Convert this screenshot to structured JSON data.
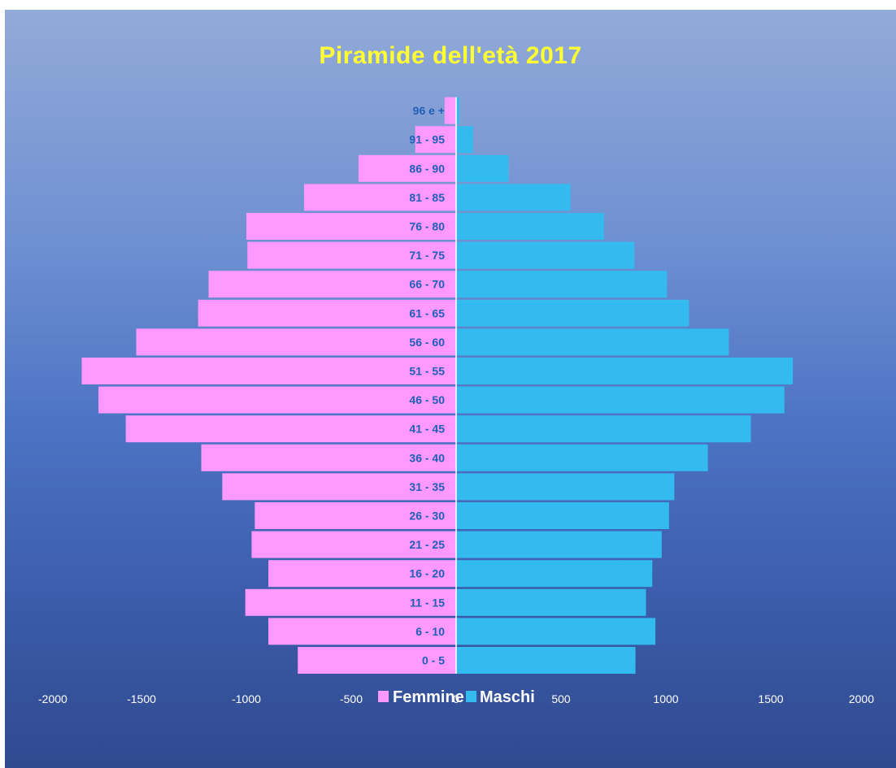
{
  "chart_data": {
    "type": "bar",
    "orientation": "horizontal",
    "title": "Piramide dell'età 2017",
    "categories": [
      "0 - 5",
      "6 - 10",
      "11 - 15",
      "16 - 20",
      "21 - 25",
      "26 - 30",
      "31 - 35",
      "36 - 40",
      "41 - 45",
      "46 - 50",
      "51 - 55",
      "56 - 60",
      "61 - 65",
      "66 - 70",
      "71 - 75",
      "76 - 80",
      "81 - 85",
      "86 - 90",
      "91 - 95",
      "96 e +"
    ],
    "series": [
      {
        "name": "Femmine",
        "color": "#ff99ff",
        "values": [
          -755,
          -895,
          -1005,
          -895,
          -975,
          -960,
          -1115,
          -1215,
          -1575,
          -1705,
          -1785,
          -1525,
          -1230,
          -1180,
          -995,
          -1000,
          -725,
          -465,
          -195,
          -55
        ]
      },
      {
        "name": "Maschi",
        "color": "#33bbf0",
        "values": [
          855,
          950,
          905,
          935,
          980,
          1015,
          1040,
          1200,
          1405,
          1565,
          1605,
          1300,
          1110,
          1005,
          850,
          705,
          545,
          250,
          80,
          15
        ]
      }
    ],
    "xlim": [
      -2000,
      2000
    ],
    "xticks": [
      -2000,
      -1500,
      -1000,
      -500,
      0,
      500,
      1000,
      1500,
      2000
    ],
    "xtick_labels": [
      "-2000",
      "-1500",
      "-1000",
      "-500",
      "0",
      "500",
      "1000",
      "1500",
      "2000"
    ],
    "legend_position": "bottom",
    "grid": false
  }
}
